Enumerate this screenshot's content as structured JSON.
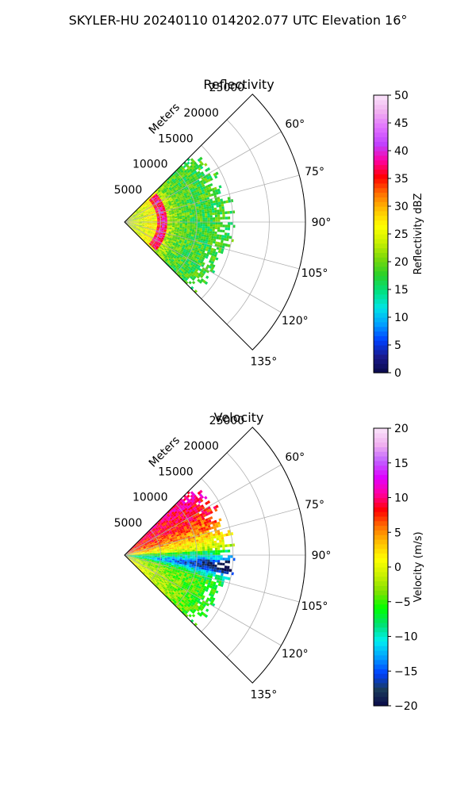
{
  "figure": {
    "suptitle": "SKYLER-HU  20240110  014202.077 UTC Elevation 16°"
  },
  "chart_data": [
    {
      "type": "heatmap",
      "projection": "polar-sector",
      "title": "Reflectivity",
      "radial_label": "Meters",
      "radial_ticks": [
        "5000",
        "10000",
        "15000",
        "20000",
        "25000"
      ],
      "radial_tick_values": [
        5000,
        10000,
        15000,
        20000,
        25000
      ],
      "rlim": [
        0,
        25000
      ],
      "angle_ticks": [
        "60°",
        "75°",
        "90°",
        "105°",
        "120°",
        "135°"
      ],
      "angle_tick_values": [
        60,
        75,
        90,
        105,
        120,
        135
      ],
      "angle_range_deg": [
        45,
        135
      ],
      "data_extent": {
        "angle_deg": [
          45,
          135
        ],
        "max_range_m": 16000
      },
      "grid": true,
      "field": "reflectivity",
      "colorbar": {
        "label": "Reflectivity dBZ",
        "ticks": [
          "0",
          "5",
          "10",
          "15",
          "20",
          "25",
          "30",
          "35",
          "40",
          "45",
          "50"
        ],
        "range": [
          0,
          50
        ],
        "colors": [
          "#0a0a4a",
          "#1a1a8c",
          "#0040ff",
          "#00a0ff",
          "#00e5e5",
          "#00e080",
          "#2ad02a",
          "#7ad80a",
          "#c8f000",
          "#ffff00",
          "#ffc000",
          "#ff7000",
          "#ff0000",
          "#ff00a0",
          "#c040ff",
          "#e070ff",
          "#f0b0f0",
          "#fbe5fb"
        ]
      }
    },
    {
      "type": "heatmap",
      "projection": "polar-sector",
      "title": "Velocity",
      "radial_label": "Meters",
      "radial_ticks": [
        "5000",
        "10000",
        "15000",
        "20000",
        "25000"
      ],
      "radial_tick_values": [
        5000,
        10000,
        15000,
        20000,
        25000
      ],
      "rlim": [
        0,
        25000
      ],
      "angle_ticks": [
        "60°",
        "75°",
        "90°",
        "105°",
        "120°",
        "135°"
      ],
      "angle_tick_values": [
        60,
        75,
        90,
        105,
        120,
        135
      ],
      "angle_range_deg": [
        45,
        135
      ],
      "data_extent": {
        "angle_deg": [
          45,
          135
        ],
        "max_range_m": 16000
      },
      "grid": true,
      "field": "velocity",
      "colorbar": {
        "label": "Velocity (m/s)",
        "ticks": [
          "−20",
          "−15",
          "−10",
          "−5",
          "0",
          "5",
          "10",
          "15",
          "20"
        ],
        "range": [
          -20,
          20
        ],
        "colors": [
          "#0a0a4a",
          "#1a3a5a",
          "#0040ff",
          "#00a0ff",
          "#00f0f0",
          "#00e070",
          "#00ff00",
          "#80e000",
          "#c8f000",
          "#ffff00",
          "#ffc000",
          "#ff7000",
          "#ff0000",
          "#ff00a0",
          "#e000ff",
          "#c060ff",
          "#f0b0f0",
          "#fbe5fb"
        ]
      }
    }
  ]
}
